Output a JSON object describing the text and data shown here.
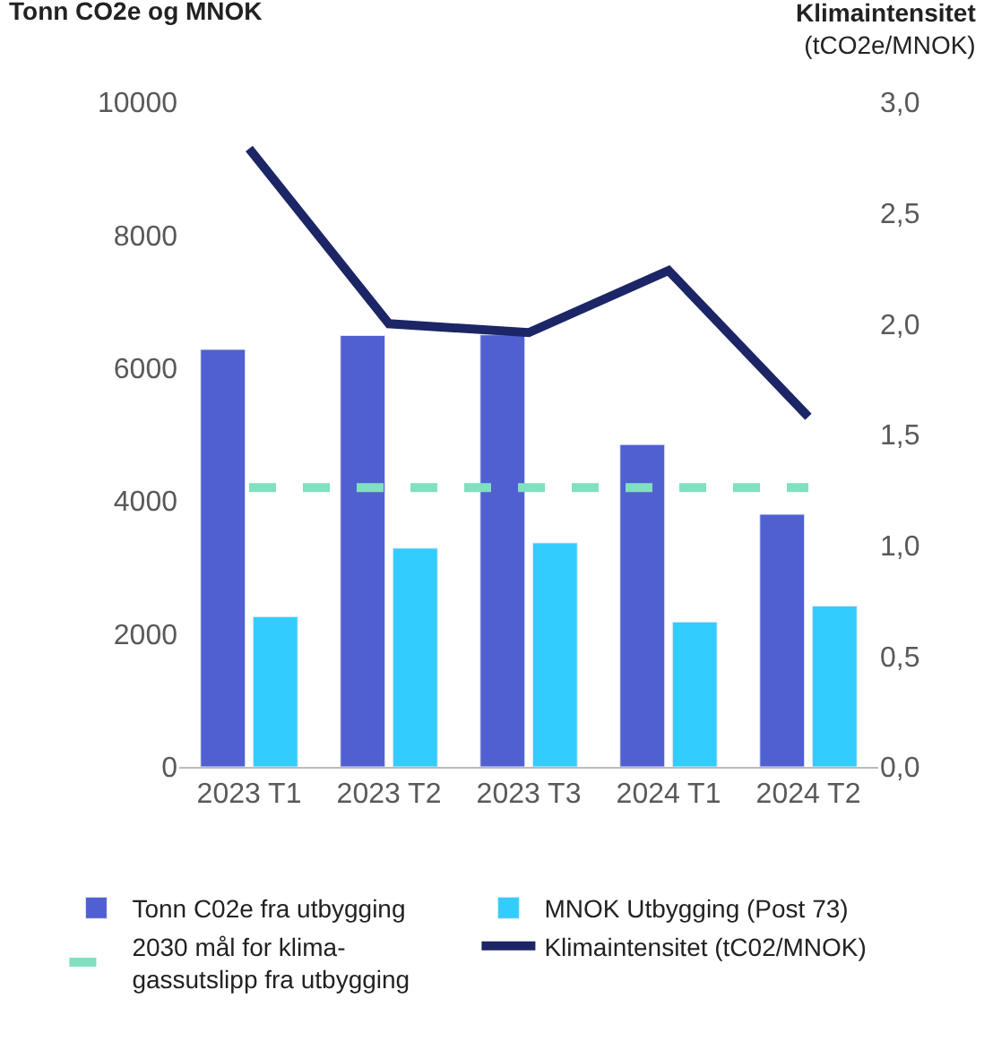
{
  "chart_data": {
    "type": "bar",
    "ylabel": "Tonn CO2e og MNOK",
    "y2label": "Klimaintensitet\n(tCO2e/MNOK)",
    "categories": [
      "2023 T1",
      "2023 T2",
      "2023 T3",
      "2024 T1",
      "2024 T2"
    ],
    "series": [
      {
        "name": "Tonn C02e fra utbygging",
        "color": "#5060d0",
        "values": [
          6280,
          6490,
          6500,
          4850,
          3800
        ]
      },
      {
        "name": "MNOK Utbygging (Post 73)",
        "color": "#33ccff",
        "values": [
          2260,
          3290,
          3370,
          2180,
          2420
        ]
      },
      {
        "name": "2030 mål for klima-\ngassutslipp fra utbygging",
        "type": "line",
        "line_style": "dashed",
        "color": "#80e0c0",
        "values": [
          4200,
          4200,
          4200,
          4200,
          4200
        ]
      },
      {
        "name": "Klimaintensitet (tC02/MNOK)",
        "type": "line",
        "line_style": "solid",
        "axis": "y2",
        "color": "#1c2566",
        "values": [
          2.79,
          2.0,
          1.96,
          2.24,
          1.58
        ]
      }
    ],
    "ylim": [
      0,
      10000
    ],
    "yticks": [
      0,
      2000,
      4000,
      6000,
      8000,
      10000
    ],
    "y2lim": [
      0,
      3
    ],
    "y2ticks": [
      {
        "value": 0,
        "label": "0,0"
      },
      {
        "value": 0.5,
        "label": "0,5"
      },
      {
        "value": 1,
        "label": "1,0"
      },
      {
        "value": 1.5,
        "label": "1,5"
      },
      {
        "value": 2,
        "label": "2,0"
      },
      {
        "value": 2.5,
        "label": "2,5"
      },
      {
        "value": 3,
        "label": "3,0"
      }
    ],
    "legend": "bottom",
    "marker": "none"
  }
}
